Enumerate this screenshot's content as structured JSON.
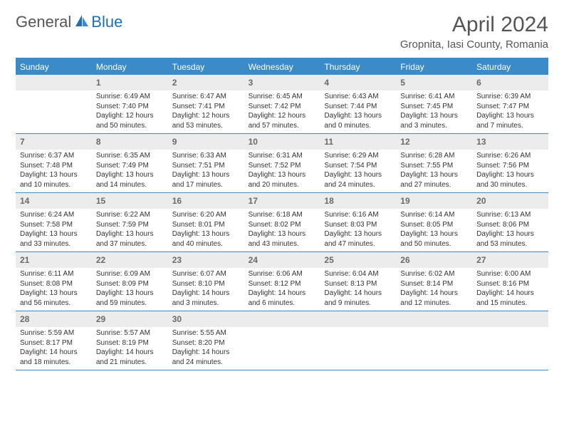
{
  "logo": {
    "general": "General",
    "blue": "Blue"
  },
  "title": "April 2024",
  "location": "Gropnita, Iasi County, Romania",
  "colors": {
    "header_bg": "#3b8bc9",
    "header_text": "#ffffff",
    "daynum_bg": "#ececec",
    "daynum_text": "#6a6a6a",
    "rule": "#3b8bc9",
    "body_text": "#333333",
    "logo_blue": "#1f6fb2",
    "page_bg": "#ffffff"
  },
  "dayNames": [
    "Sunday",
    "Monday",
    "Tuesday",
    "Wednesday",
    "Thursday",
    "Friday",
    "Saturday"
  ],
  "weeks": [
    [
      {
        "n": "",
        "sr": "",
        "ss": "",
        "d1": "",
        "d2": ""
      },
      {
        "n": "1",
        "sr": "Sunrise: 6:49 AM",
        "ss": "Sunset: 7:40 PM",
        "d1": "Daylight: 12 hours",
        "d2": "and 50 minutes."
      },
      {
        "n": "2",
        "sr": "Sunrise: 6:47 AM",
        "ss": "Sunset: 7:41 PM",
        "d1": "Daylight: 12 hours",
        "d2": "and 53 minutes."
      },
      {
        "n": "3",
        "sr": "Sunrise: 6:45 AM",
        "ss": "Sunset: 7:42 PM",
        "d1": "Daylight: 12 hours",
        "d2": "and 57 minutes."
      },
      {
        "n": "4",
        "sr": "Sunrise: 6:43 AM",
        "ss": "Sunset: 7:44 PM",
        "d1": "Daylight: 13 hours",
        "d2": "and 0 minutes."
      },
      {
        "n": "5",
        "sr": "Sunrise: 6:41 AM",
        "ss": "Sunset: 7:45 PM",
        "d1": "Daylight: 13 hours",
        "d2": "and 3 minutes."
      },
      {
        "n": "6",
        "sr": "Sunrise: 6:39 AM",
        "ss": "Sunset: 7:47 PM",
        "d1": "Daylight: 13 hours",
        "d2": "and 7 minutes."
      }
    ],
    [
      {
        "n": "7",
        "sr": "Sunrise: 6:37 AM",
        "ss": "Sunset: 7:48 PM",
        "d1": "Daylight: 13 hours",
        "d2": "and 10 minutes."
      },
      {
        "n": "8",
        "sr": "Sunrise: 6:35 AM",
        "ss": "Sunset: 7:49 PM",
        "d1": "Daylight: 13 hours",
        "d2": "and 14 minutes."
      },
      {
        "n": "9",
        "sr": "Sunrise: 6:33 AM",
        "ss": "Sunset: 7:51 PM",
        "d1": "Daylight: 13 hours",
        "d2": "and 17 minutes."
      },
      {
        "n": "10",
        "sr": "Sunrise: 6:31 AM",
        "ss": "Sunset: 7:52 PM",
        "d1": "Daylight: 13 hours",
        "d2": "and 20 minutes."
      },
      {
        "n": "11",
        "sr": "Sunrise: 6:29 AM",
        "ss": "Sunset: 7:54 PM",
        "d1": "Daylight: 13 hours",
        "d2": "and 24 minutes."
      },
      {
        "n": "12",
        "sr": "Sunrise: 6:28 AM",
        "ss": "Sunset: 7:55 PM",
        "d1": "Daylight: 13 hours",
        "d2": "and 27 minutes."
      },
      {
        "n": "13",
        "sr": "Sunrise: 6:26 AM",
        "ss": "Sunset: 7:56 PM",
        "d1": "Daylight: 13 hours",
        "d2": "and 30 minutes."
      }
    ],
    [
      {
        "n": "14",
        "sr": "Sunrise: 6:24 AM",
        "ss": "Sunset: 7:58 PM",
        "d1": "Daylight: 13 hours",
        "d2": "and 33 minutes."
      },
      {
        "n": "15",
        "sr": "Sunrise: 6:22 AM",
        "ss": "Sunset: 7:59 PM",
        "d1": "Daylight: 13 hours",
        "d2": "and 37 minutes."
      },
      {
        "n": "16",
        "sr": "Sunrise: 6:20 AM",
        "ss": "Sunset: 8:01 PM",
        "d1": "Daylight: 13 hours",
        "d2": "and 40 minutes."
      },
      {
        "n": "17",
        "sr": "Sunrise: 6:18 AM",
        "ss": "Sunset: 8:02 PM",
        "d1": "Daylight: 13 hours",
        "d2": "and 43 minutes."
      },
      {
        "n": "18",
        "sr": "Sunrise: 6:16 AM",
        "ss": "Sunset: 8:03 PM",
        "d1": "Daylight: 13 hours",
        "d2": "and 47 minutes."
      },
      {
        "n": "19",
        "sr": "Sunrise: 6:14 AM",
        "ss": "Sunset: 8:05 PM",
        "d1": "Daylight: 13 hours",
        "d2": "and 50 minutes."
      },
      {
        "n": "20",
        "sr": "Sunrise: 6:13 AM",
        "ss": "Sunset: 8:06 PM",
        "d1": "Daylight: 13 hours",
        "d2": "and 53 minutes."
      }
    ],
    [
      {
        "n": "21",
        "sr": "Sunrise: 6:11 AM",
        "ss": "Sunset: 8:08 PM",
        "d1": "Daylight: 13 hours",
        "d2": "and 56 minutes."
      },
      {
        "n": "22",
        "sr": "Sunrise: 6:09 AM",
        "ss": "Sunset: 8:09 PM",
        "d1": "Daylight: 13 hours",
        "d2": "and 59 minutes."
      },
      {
        "n": "23",
        "sr": "Sunrise: 6:07 AM",
        "ss": "Sunset: 8:10 PM",
        "d1": "Daylight: 14 hours",
        "d2": "and 3 minutes."
      },
      {
        "n": "24",
        "sr": "Sunrise: 6:06 AM",
        "ss": "Sunset: 8:12 PM",
        "d1": "Daylight: 14 hours",
        "d2": "and 6 minutes."
      },
      {
        "n": "25",
        "sr": "Sunrise: 6:04 AM",
        "ss": "Sunset: 8:13 PM",
        "d1": "Daylight: 14 hours",
        "d2": "and 9 minutes."
      },
      {
        "n": "26",
        "sr": "Sunrise: 6:02 AM",
        "ss": "Sunset: 8:14 PM",
        "d1": "Daylight: 14 hours",
        "d2": "and 12 minutes."
      },
      {
        "n": "27",
        "sr": "Sunrise: 6:00 AM",
        "ss": "Sunset: 8:16 PM",
        "d1": "Daylight: 14 hours",
        "d2": "and 15 minutes."
      }
    ],
    [
      {
        "n": "28",
        "sr": "Sunrise: 5:59 AM",
        "ss": "Sunset: 8:17 PM",
        "d1": "Daylight: 14 hours",
        "d2": "and 18 minutes."
      },
      {
        "n": "29",
        "sr": "Sunrise: 5:57 AM",
        "ss": "Sunset: 8:19 PM",
        "d1": "Daylight: 14 hours",
        "d2": "and 21 minutes."
      },
      {
        "n": "30",
        "sr": "Sunrise: 5:55 AM",
        "ss": "Sunset: 8:20 PM",
        "d1": "Daylight: 14 hours",
        "d2": "and 24 minutes."
      },
      {
        "n": "",
        "sr": "",
        "ss": "",
        "d1": "",
        "d2": ""
      },
      {
        "n": "",
        "sr": "",
        "ss": "",
        "d1": "",
        "d2": ""
      },
      {
        "n": "",
        "sr": "",
        "ss": "",
        "d1": "",
        "d2": ""
      },
      {
        "n": "",
        "sr": "",
        "ss": "",
        "d1": "",
        "d2": ""
      }
    ]
  ]
}
